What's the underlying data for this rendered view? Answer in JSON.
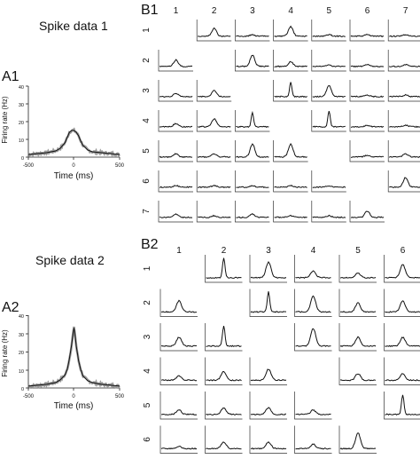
{
  "panels": {
    "a1": {
      "heading": "Spike data 1",
      "letter": "A1",
      "ylabel": "Firing rate (Hz)",
      "xlabel": "Time (ms)",
      "xticks": [
        "-500",
        "0",
        "500"
      ],
      "yticks": [
        "0",
        "10",
        "20",
        "30",
        "40"
      ]
    },
    "a2": {
      "heading": "Spike data 2",
      "letter": "A2",
      "ylabel": "Firing rate (Hz)",
      "xlabel": "Time (ms)",
      "xticks": [
        "-500",
        "0",
        "500"
      ],
      "yticks": [
        "0",
        "10",
        "20",
        "30",
        "40"
      ]
    },
    "b1": {
      "letter": "B1",
      "col_labels": [
        "1",
        "2",
        "3",
        "4",
        "5",
        "6",
        "7"
      ],
      "row_labels": [
        "1",
        "2",
        "3",
        "4",
        "5",
        "6",
        "7"
      ]
    },
    "b2": {
      "letter": "B2",
      "col_labels": [
        "1",
        "2",
        "3",
        "4",
        "5",
        "6"
      ],
      "row_labels": [
        "1",
        "2",
        "3",
        "4",
        "5",
        "6"
      ]
    }
  },
  "chart_data": [
    {
      "type": "line",
      "panel": "A1",
      "title": "Spike data 1",
      "xlabel": "Time (ms)",
      "ylabel": "Firing rate (Hz)",
      "xlim": [
        -500,
        500
      ],
      "ylim": [
        0,
        40
      ],
      "x": [
        -500,
        -400,
        -300,
        -200,
        -150,
        -100,
        -75,
        -50,
        -25,
        0,
        25,
        50,
        75,
        100,
        150,
        200,
        300,
        400,
        500
      ],
      "series": [
        {
          "values": [
            1.5,
            2,
            2.5,
            3.5,
            5,
            8,
            11,
            14,
            15,
            15,
            14,
            12,
            9,
            6.5,
            4,
            3,
            2.5,
            2,
            1.5
          ]
        }
      ]
    },
    {
      "type": "line",
      "panel": "A2",
      "title": "Spike data 2",
      "xlabel": "Time (ms)",
      "ylabel": "Firing rate (Hz)",
      "xlim": [
        -500,
        500
      ],
      "ylim": [
        0,
        40
      ],
      "x": [
        -500,
        -400,
        -300,
        -200,
        -150,
        -100,
        -75,
        -50,
        -25,
        -10,
        0,
        10,
        25,
        50,
        75,
        100,
        150,
        200,
        300,
        400,
        500
      ],
      "series": [
        {
          "values": [
            1,
            1.5,
            2,
            3,
            4.5,
            7,
            10,
            16,
            24,
            30,
            33,
            30,
            23,
            15,
            10,
            6.5,
            4,
            3,
            2,
            1.5,
            1
          ]
        }
      ]
    },
    {
      "type": "line",
      "panel": "B1",
      "description_grid": "7x7 pairwise cross-correlograms, diagonal empty",
      "peaks": [
        [
          0,
          0.5,
          0.1,
          0.6,
          0.1,
          0.1,
          0.1
        ],
        [
          0.4,
          0,
          0.7,
          0.3,
          0.1,
          0.1,
          0.1
        ],
        [
          0.2,
          0.4,
          0,
          0.9,
          0.7,
          0.1,
          0.1
        ],
        [
          0.2,
          0.5,
          0.9,
          0,
          1.0,
          0.1,
          0.1
        ],
        [
          0.2,
          0.2,
          0.8,
          0.8,
          0,
          0.1,
          0.2
        ],
        [
          0.1,
          0.1,
          0.1,
          0.1,
          0.1,
          0,
          0.6
        ],
        [
          0.2,
          0.1,
          0.2,
          0.1,
          0.1,
          0.4,
          0
        ]
      ]
    },
    {
      "type": "line",
      "panel": "B2",
      "description_grid": "6x6 pairwise cross-correlograms, diagonal empty",
      "peaks": [
        [
          0,
          0.9,
          0.7,
          0.3,
          0.2,
          0.6
        ],
        [
          0.5,
          0,
          0.9,
          0.7,
          0.4,
          0.5
        ],
        [
          0.4,
          0.9,
          0,
          0.8,
          0.4,
          0.4
        ],
        [
          0.2,
          0.4,
          0.5,
          0,
          0.3,
          0.3
        ],
        [
          0.2,
          0.3,
          0.3,
          0.2,
          0,
          0.9
        ],
        [
          0.1,
          0.3,
          0.3,
          0.2,
          0.7,
          0
        ]
      ]
    }
  ]
}
